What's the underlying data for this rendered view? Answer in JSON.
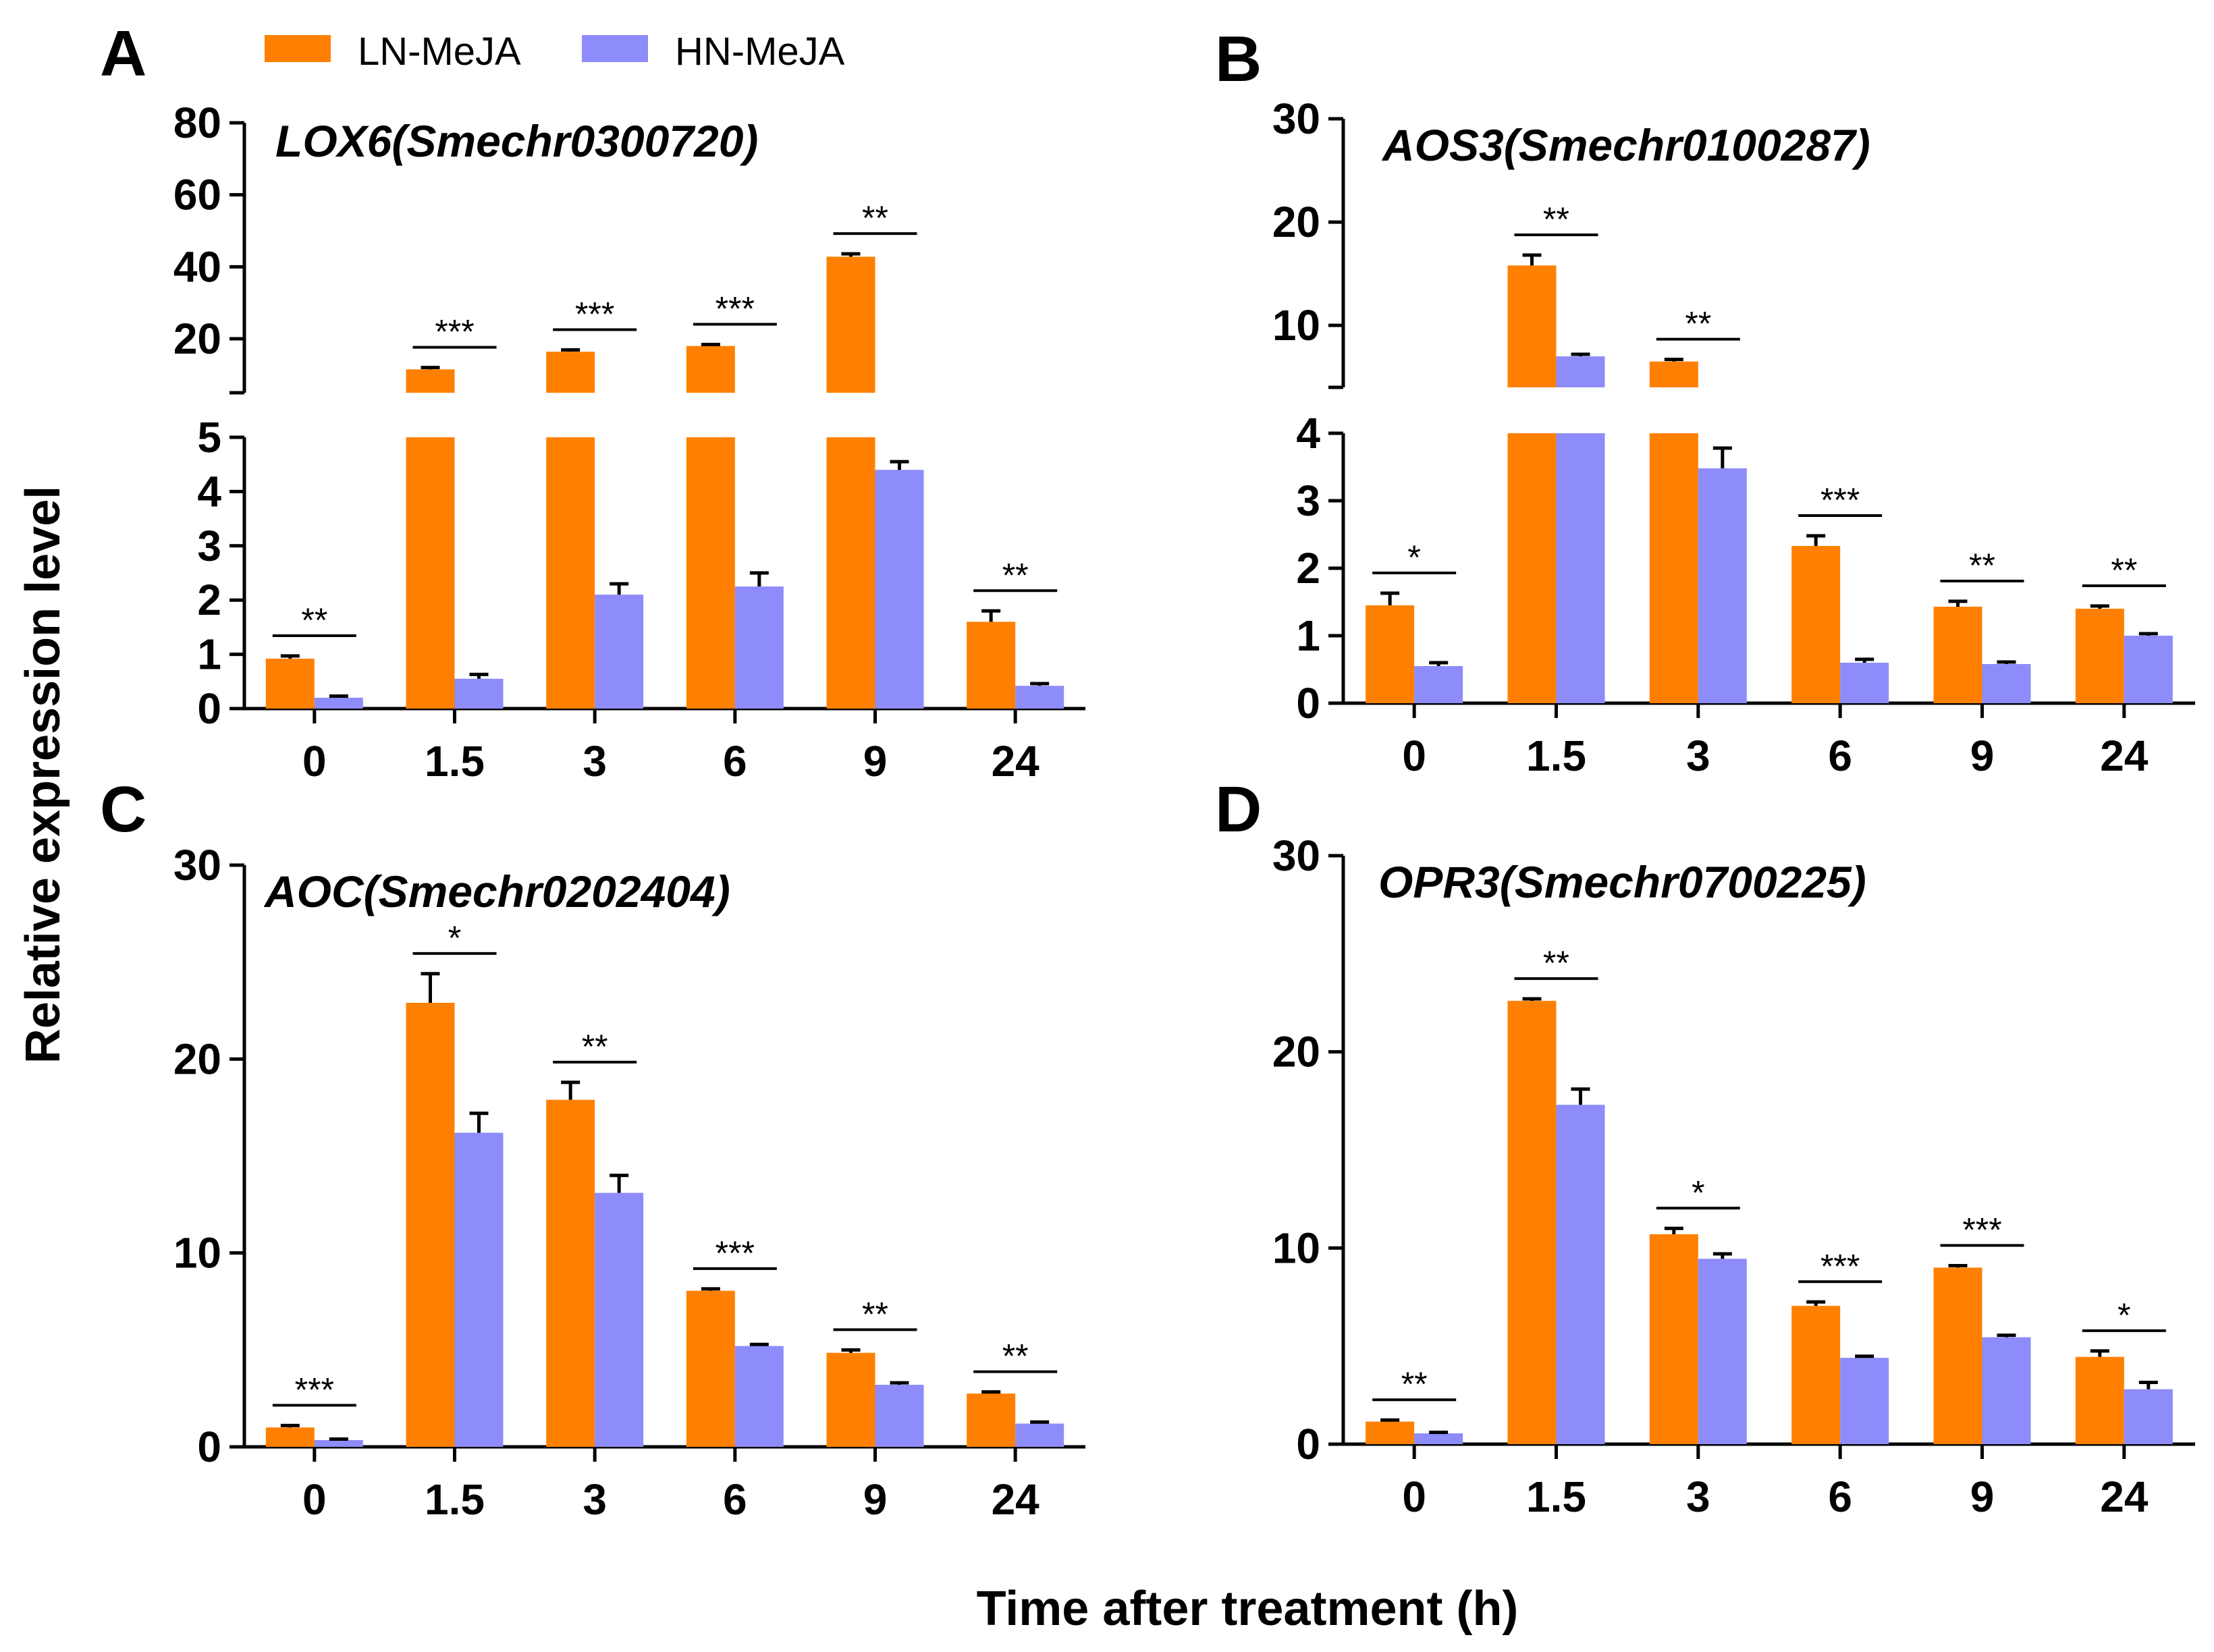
{
  "legend": [
    {
      "label": "LN-MeJA",
      "color": "#FF8000"
    },
    {
      "label": "HN-MeJA",
      "color": "#8E8CFA"
    }
  ],
  "ylabel": "Relative expression level",
  "xlabel": "Time after treatment (h)",
  "chart_data": [
    {
      "panel": "A",
      "type": "bar",
      "title": "LOX6(Smechr0300720)",
      "categories": [
        "0",
        "1.5",
        "3",
        "6",
        "9",
        "24"
      ],
      "series": [
        {
          "name": "LN-MeJA",
          "values": [
            0.92,
            11.5,
            16.4,
            18.0,
            42.8,
            1.6
          ],
          "errors": [
            0.05,
            0.5,
            0.5,
            0.4,
            0.8,
            0.2
          ]
        },
        {
          "name": "HN-MeJA",
          "values": [
            0.2,
            0.55,
            2.1,
            2.25,
            4.4,
            0.42
          ],
          "errors": [
            0.03,
            0.08,
            0.2,
            0.25,
            0.15,
            0.04
          ]
        }
      ],
      "significance": [
        "**",
        "***",
        "***",
        "***",
        "**",
        "**"
      ],
      "ylim_lower": [
        0,
        5
      ],
      "ylim_upper": [
        5,
        80
      ],
      "yticks_lower": [
        0,
        1,
        2,
        3,
        4,
        5
      ],
      "yticks_upper": [
        20,
        40,
        60,
        80
      ]
    },
    {
      "panel": "B",
      "type": "bar",
      "title": "AOS3(Smechr0100287)",
      "categories": [
        "0",
        "1.5",
        "3",
        "6",
        "9",
        "24"
      ],
      "series": [
        {
          "name": "LN-MeJA",
          "values": [
            1.45,
            15.8,
            6.5,
            2.33,
            1.43,
            1.4
          ],
          "errors": [
            0.18,
            1.0,
            0.2,
            0.15,
            0.08,
            0.04
          ]
        },
        {
          "name": "HN-MeJA",
          "values": [
            0.55,
            7.0,
            3.48,
            0.6,
            0.58,
            1.0
          ],
          "errors": [
            0.05,
            0.2,
            0.3,
            0.05,
            0.03,
            0.03
          ]
        }
      ],
      "significance": [
        "*",
        "**",
        "**",
        "***",
        "**",
        "**"
      ],
      "ylim_lower": [
        0,
        4
      ],
      "ylim_upper": [
        4,
        30
      ],
      "yticks_lower": [
        0,
        1,
        2,
        3,
        4
      ],
      "yticks_upper": [
        10,
        20,
        30
      ]
    },
    {
      "panel": "C",
      "type": "bar",
      "title": "AOC(Smechr0202404)",
      "categories": [
        "0",
        "1.5",
        "3",
        "6",
        "9",
        "24"
      ],
      "series": [
        {
          "name": "LN-MeJA",
          "values": [
            1.0,
            22.9,
            17.9,
            8.05,
            4.85,
            2.75
          ],
          "errors": [
            0.1,
            1.5,
            0.9,
            0.1,
            0.15,
            0.08
          ]
        },
        {
          "name": "HN-MeJA",
          "values": [
            0.35,
            16.2,
            13.1,
            5.2,
            3.2,
            1.2
          ],
          "errors": [
            0.05,
            1.0,
            0.9,
            0.08,
            0.1,
            0.08
          ]
        }
      ],
      "significance": [
        "***",
        "*",
        "**",
        "***",
        "**",
        "**"
      ],
      "ylim": [
        0,
        30
      ],
      "yticks": [
        0,
        10,
        20,
        30
      ]
    },
    {
      "panel": "D",
      "type": "bar",
      "title": "OPR3(Smechr0700225)",
      "categories": [
        "0",
        "1.5",
        "3",
        "6",
        "9",
        "24"
      ],
      "series": [
        {
          "name": "LN-MeJA",
          "values": [
            1.15,
            22.6,
            10.7,
            7.05,
            9.0,
            4.45
          ],
          "errors": [
            0.08,
            0.1,
            0.3,
            0.2,
            0.1,
            0.3
          ]
        },
        {
          "name": "HN-MeJA",
          "values": [
            0.55,
            17.3,
            9.45,
            4.4,
            5.45,
            2.8
          ],
          "errors": [
            0.05,
            0.8,
            0.25,
            0.08,
            0.1,
            0.35
          ]
        }
      ],
      "significance": [
        "**",
        "**",
        "*",
        "***",
        "***",
        "*"
      ],
      "ylim": [
        0,
        30
      ],
      "yticks": [
        0,
        10,
        20,
        30
      ]
    }
  ]
}
